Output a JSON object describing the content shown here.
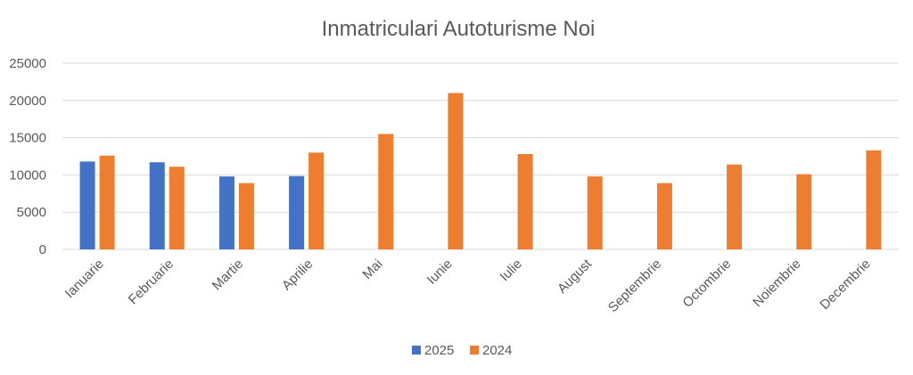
{
  "chart_data": {
    "type": "bar",
    "title": "Inmatriculari Autoturisme Noi",
    "categories": [
      "Ianuarie",
      "Februarie",
      "Martie",
      "Aprilie",
      "Mai",
      "Iunie",
      "Iulie",
      "August",
      "Septembrie",
      "Octombrie",
      "Noiembrie",
      "Decembrie"
    ],
    "series": [
      {
        "name": "2025",
        "color": "#4472C4",
        "values": [
          11800,
          11700,
          9800,
          9850,
          null,
          null,
          null,
          null,
          null,
          null,
          null,
          null
        ]
      },
      {
        "name": "2024",
        "color": "#ED7D31",
        "values": [
          12600,
          11100,
          8900,
          13000,
          15500,
          21000,
          12800,
          9800,
          8900,
          11400,
          10100,
          13300
        ]
      }
    ],
    "yticks": [
      0,
      5000,
      10000,
      15000,
      20000,
      25000
    ],
    "ylim": [
      0,
      25000
    ],
    "grid": true,
    "legend": "bottom",
    "gridline_color": "#D9D9D9",
    "text_color": "#595959"
  }
}
